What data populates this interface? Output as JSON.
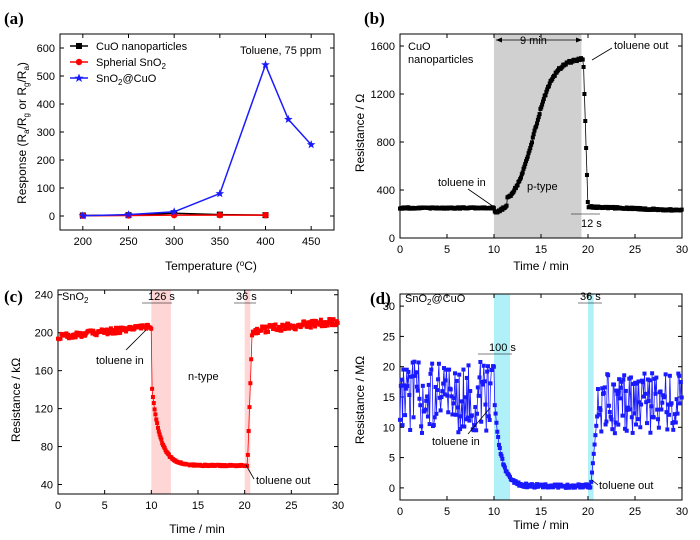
{
  "chart_data": [
    {
      "panel_label": "(a)",
      "type": "line",
      "annotation": "Toluene, 75 ppm",
      "xlabel": "Temperature (°C)",
      "ylabel": "Response (Ra/Rg or Rg/Ra)",
      "xlim": [
        175,
        475
      ],
      "ylim": [
        -50,
        650
      ],
      "xticks": [
        200,
        250,
        300,
        350,
        400,
        450
      ],
      "yticks": [
        0,
        100,
        200,
        300,
        400,
        500,
        600
      ],
      "legend_position": "top-left",
      "series": [
        {
          "name": "CuO nanoparticles",
          "color": "#000000",
          "marker": "square",
          "x": [
            200,
            250,
            300,
            350,
            400
          ],
          "y": [
            2,
            3,
            10,
            5,
            3
          ]
        },
        {
          "name": "Spherial SnO2",
          "color": "#ff0000",
          "marker": "circle",
          "x": [
            200,
            250,
            300,
            350,
            400
          ],
          "y": [
            1,
            2,
            3,
            3,
            3
          ]
        },
        {
          "name": "SnO2@CuO",
          "color": "#1a1aff",
          "marker": "star",
          "x": [
            200,
            250,
            300,
            350,
            400,
            425,
            450
          ],
          "y": [
            1,
            5,
            15,
            80,
            540,
            345,
            255
          ]
        }
      ]
    },
    {
      "panel_label": "(b)",
      "type": "scatter",
      "title": "CuO nanoparticles",
      "xlabel": "Time / min",
      "ylabel": "Resistance / Ω",
      "xlim": [
        0,
        30
      ],
      "ylim": [
        0,
        1700
      ],
      "xticks": [
        0,
        5,
        10,
        15,
        20,
        25,
        30
      ],
      "yticks": [
        0,
        400,
        800,
        1200,
        1600
      ],
      "shade": {
        "from": 10,
        "to": 19.3,
        "color": "#d0d0d0"
      },
      "annotations": {
        "duration": "9 min",
        "toluene_in": "toluene in",
        "toluene_out": "toluene out",
        "type": "p-type",
        "recovery": "12 s"
      },
      "series": [
        {
          "name": "",
          "color": "#000000",
          "marker": "square"
        }
      ]
    },
    {
      "panel_label": "(c)",
      "type": "scatter",
      "title": "SnO2",
      "xlabel": "Time / min",
      "ylabel": "Resistance / kΩ",
      "xlim": [
        0,
        30
      ],
      "ylim": [
        30,
        245
      ],
      "xticks": [
        0,
        5,
        10,
        15,
        20,
        25,
        30
      ],
      "yticks": [
        40,
        80,
        120,
        160,
        200,
        240
      ],
      "shade_regions": [
        {
          "from": 10,
          "to": 12.1,
          "color": "#ffd6d6"
        },
        {
          "from": 20,
          "to": 20.6,
          "color": "#ffd6d6"
        }
      ],
      "annotations": {
        "response_time": "126 s",
        "recovery_time": "36 s",
        "toluene_in": "toluene in",
        "toluene_out": "toluene out",
        "type": "n-type"
      },
      "series": [
        {
          "name": "",
          "color": "#ff0000",
          "marker": "square"
        }
      ]
    },
    {
      "panel_label": "(d)",
      "type": "scatter",
      "title": "SnO2@CuO",
      "xlabel": "Time / min",
      "ylabel": "Resistance / MΩ",
      "xlim": [
        0,
        30
      ],
      "ylim": [
        -2,
        32
      ],
      "xticks": [
        0,
        5,
        10,
        15,
        20,
        25,
        30
      ],
      "yticks": [
        0,
        5,
        10,
        15,
        20,
        25,
        30
      ],
      "shade_regions": [
        {
          "from": 10,
          "to": 11.7,
          "color": "#b0f0f8"
        },
        {
          "from": 20,
          "to": 20.6,
          "color": "#b0f0f8"
        }
      ],
      "annotations": {
        "response_time": "100 s",
        "recovery_time": "36 s",
        "toluene_in": "toluene in",
        "toluene_out": "toluene out"
      },
      "series": [
        {
          "name": "",
          "color": "#1a1aff",
          "marker": "square"
        }
      ]
    }
  ]
}
